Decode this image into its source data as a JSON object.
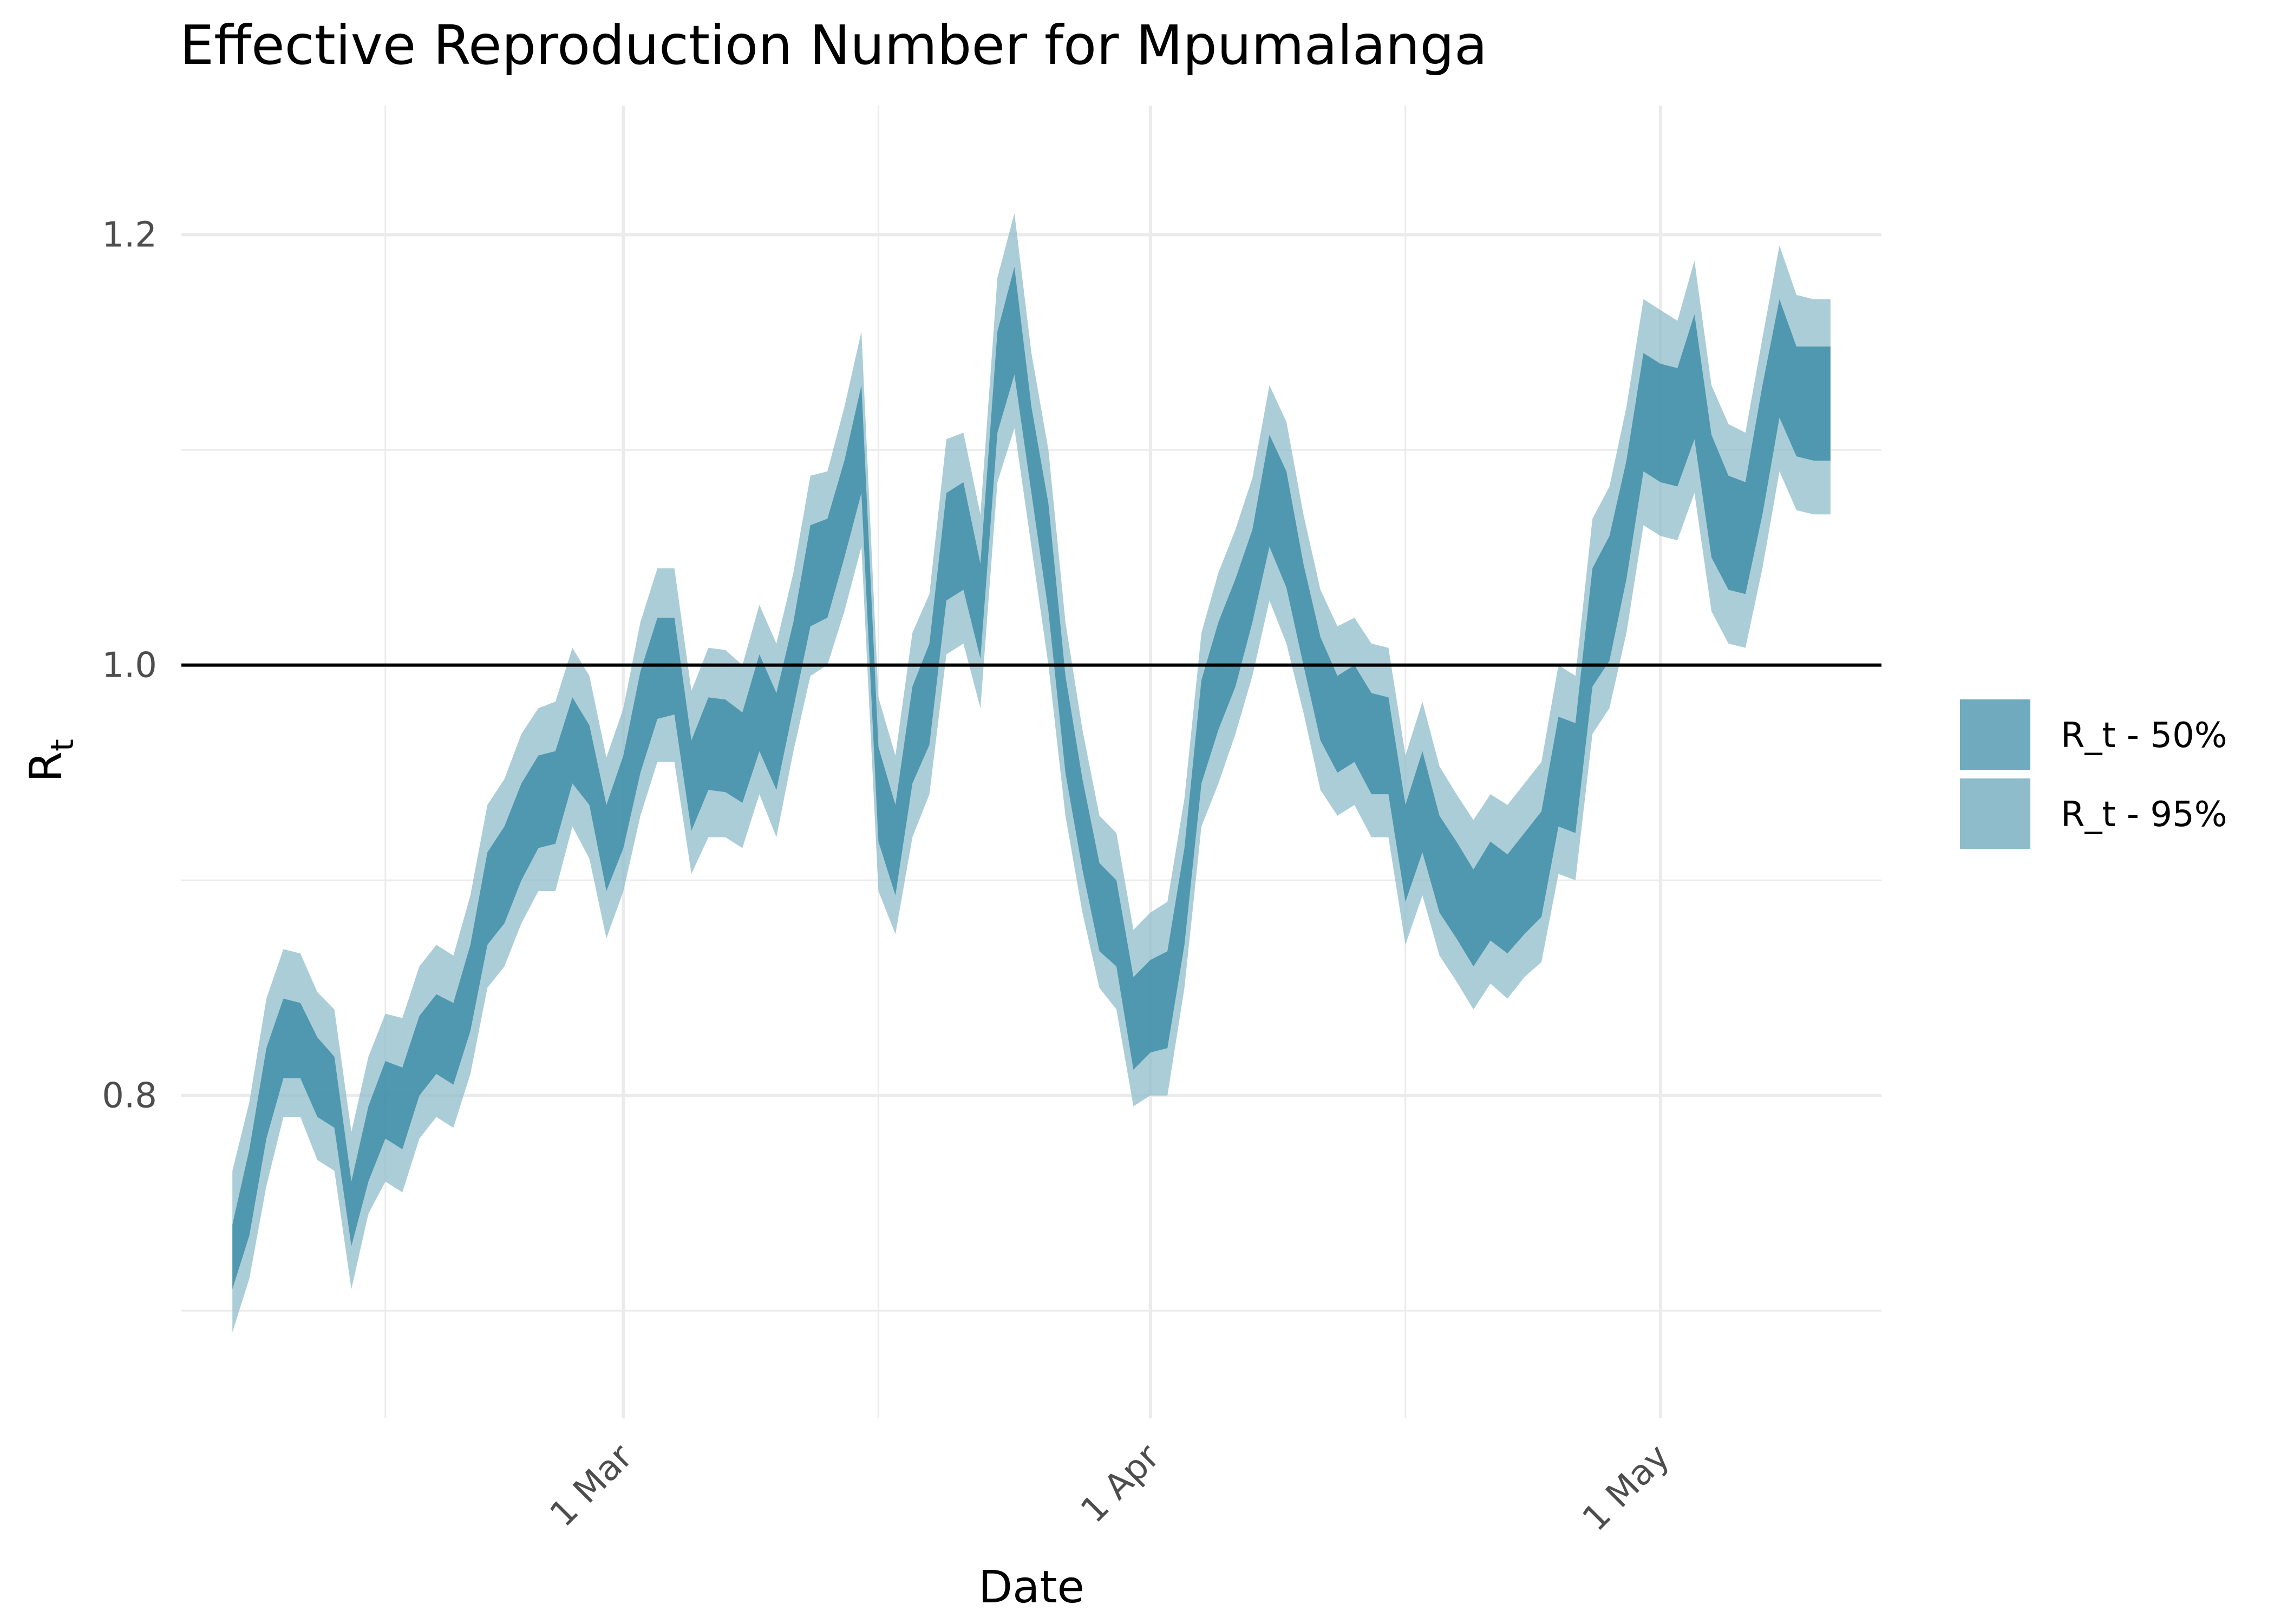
{
  "chart_data": {
    "type": "area",
    "title": "Effective Reproduction Number for Mpumalanga",
    "xlabel": "Date",
    "ylabel": {
      "main": "R",
      "subscript": "t"
    },
    "x_ticks": [
      "1 Mar",
      "1 Apr",
      "1 May"
    ],
    "y_ticks": [
      "0.8",
      "1.0",
      "1.2"
    ],
    "ylim": [
      0.65,
      1.26
    ],
    "xlim": [
      "2021-02-03",
      "2021-05-14"
    ],
    "grid": true,
    "reference_line": 1.0,
    "legend_position": "right",
    "colors": {
      "band50": "#3f8ea8",
      "band95": "#8fbcca",
      "refline": "#000000",
      "grid": "#ebebeb"
    },
    "x": [
      "2021-02-06",
      "2021-02-07",
      "2021-02-08",
      "2021-02-09",
      "2021-02-10",
      "2021-02-11",
      "2021-02-12",
      "2021-02-13",
      "2021-02-14",
      "2021-02-15",
      "2021-02-16",
      "2021-02-17",
      "2021-02-18",
      "2021-02-19",
      "2021-02-20",
      "2021-02-21",
      "2021-02-22",
      "2021-02-23",
      "2021-02-24",
      "2021-02-25",
      "2021-02-26",
      "2021-02-27",
      "2021-02-28",
      "2021-03-01",
      "2021-03-02",
      "2021-03-03",
      "2021-03-04",
      "2021-03-05",
      "2021-03-06",
      "2021-03-07",
      "2021-03-08",
      "2021-03-09",
      "2021-03-10",
      "2021-03-11",
      "2021-03-12",
      "2021-03-13",
      "2021-03-14",
      "2021-03-15",
      "2021-03-16",
      "2021-03-17",
      "2021-03-18",
      "2021-03-19",
      "2021-03-20",
      "2021-03-21",
      "2021-03-22",
      "2021-03-23",
      "2021-03-24",
      "2021-03-25",
      "2021-03-26",
      "2021-03-27",
      "2021-03-28",
      "2021-03-29",
      "2021-03-30",
      "2021-03-31",
      "2021-04-01",
      "2021-04-02",
      "2021-04-03",
      "2021-04-04",
      "2021-04-05",
      "2021-04-06",
      "2021-04-07",
      "2021-04-08",
      "2021-04-09",
      "2021-04-10",
      "2021-04-11",
      "2021-04-12",
      "2021-04-13",
      "2021-04-14",
      "2021-04-15",
      "2021-04-16",
      "2021-04-17",
      "2021-04-18",
      "2021-04-19",
      "2021-04-20",
      "2021-04-21",
      "2021-04-22",
      "2021-04-23",
      "2021-04-24",
      "2021-04-25",
      "2021-04-26",
      "2021-04-27",
      "2021-04-28",
      "2021-04-29",
      "2021-04-30",
      "2021-05-01",
      "2021-05-02",
      "2021-05-03",
      "2021-05-04",
      "2021-05-05",
      "2021-05-06",
      "2021-05-07",
      "2021-05-08",
      "2021-05-09",
      "2021-05-10",
      "2021-05-11"
    ],
    "series": [
      {
        "name": "R_t - 50%",
        "lower": [
          0.71,
          0.735,
          0.78,
          0.808,
          0.808,
          0.79,
          0.785,
          0.73,
          0.76,
          0.78,
          0.775,
          0.8,
          0.81,
          0.805,
          0.83,
          0.87,
          0.88,
          0.9,
          0.915,
          0.917,
          0.945,
          0.935,
          0.895,
          0.915,
          0.95,
          0.975,
          0.977,
          0.923,
          0.942,
          0.941,
          0.936,
          0.96,
          0.942,
          0.98,
          1.018,
          1.022,
          1.05,
          1.08,
          0.918,
          0.893,
          0.945,
          0.963,
          1.03,
          1.035,
          1.003,
          1.108,
          1.135,
          1.08,
          1.025,
          0.95,
          0.905,
          0.867,
          0.86,
          0.812,
          0.82,
          0.822,
          0.87,
          0.945,
          0.97,
          0.99,
          1.02,
          1.055,
          1.036,
          1.0,
          0.965,
          0.95,
          0.955,
          0.94,
          0.94,
          0.89,
          0.913,
          0.885,
          0.873,
          0.86,
          0.872,
          0.866,
          0.875,
          0.883,
          0.925,
          0.922,
          0.99,
          1.002,
          1.04,
          1.09,
          1.085,
          1.083,
          1.105,
          1.05,
          1.035,
          1.033,
          1.07,
          1.115,
          1.097,
          1.095,
          1.095
        ],
        "upper": [
          0.74,
          0.775,
          0.822,
          0.845,
          0.843,
          0.827,
          0.818,
          0.76,
          0.795,
          0.816,
          0.813,
          0.837,
          0.847,
          0.843,
          0.87,
          0.913,
          0.925,
          0.945,
          0.958,
          0.96,
          0.985,
          0.972,
          0.935,
          0.958,
          0.997,
          1.022,
          1.022,
          0.965,
          0.985,
          0.984,
          0.978,
          1.005,
          0.987,
          1.02,
          1.065,
          1.068,
          1.095,
          1.13,
          0.962,
          0.935,
          0.99,
          1.01,
          1.08,
          1.085,
          1.047,
          1.155,
          1.185,
          1.12,
          1.075,
          0.995,
          0.947,
          0.908,
          0.9,
          0.855,
          0.863,
          0.867,
          0.915,
          0.993,
          1.02,
          1.04,
          1.063,
          1.107,
          1.09,
          1.047,
          1.013,
          0.995,
          1.0,
          0.987,
          0.985,
          0.935,
          0.96,
          0.93,
          0.918,
          0.905,
          0.918,
          0.912,
          0.922,
          0.932,
          0.976,
          0.973,
          1.045,
          1.06,
          1.095,
          1.145,
          1.14,
          1.138,
          1.163,
          1.107,
          1.088,
          1.085,
          1.13,
          1.17,
          1.148,
          1.148,
          1.148
        ]
      },
      {
        "name": "R_t - 95%",
        "lower": [
          0.69,
          0.715,
          0.758,
          0.79,
          0.79,
          0.77,
          0.765,
          0.71,
          0.745,
          0.76,
          0.755,
          0.78,
          0.79,
          0.785,
          0.81,
          0.85,
          0.86,
          0.88,
          0.895,
          0.895,
          0.925,
          0.91,
          0.873,
          0.895,
          0.93,
          0.955,
          0.955,
          0.903,
          0.92,
          0.92,
          0.915,
          0.94,
          0.92,
          0.96,
          0.995,
          1.0,
          1.025,
          1.055,
          0.895,
          0.875,
          0.92,
          0.94,
          1.005,
          1.01,
          0.98,
          1.085,
          1.11,
          1.055,
          1.0,
          0.93,
          0.885,
          0.85,
          0.84,
          0.795,
          0.8,
          0.8,
          0.85,
          0.925,
          0.945,
          0.968,
          0.995,
          1.03,
          1.01,
          0.978,
          0.942,
          0.93,
          0.935,
          0.92,
          0.92,
          0.87,
          0.893,
          0.865,
          0.853,
          0.84,
          0.852,
          0.845,
          0.855,
          0.862,
          0.903,
          0.9,
          0.968,
          0.98,
          1.015,
          1.065,
          1.06,
          1.058,
          1.08,
          1.025,
          1.01,
          1.008,
          1.045,
          1.09,
          1.072,
          1.07,
          1.07
        ],
        "upper": [
          0.765,
          0.797,
          0.845,
          0.868,
          0.866,
          0.848,
          0.84,
          0.783,
          0.818,
          0.838,
          0.836,
          0.86,
          0.87,
          0.865,
          0.893,
          0.935,
          0.947,
          0.968,
          0.98,
          0.983,
          1.008,
          0.995,
          0.957,
          0.98,
          1.02,
          1.045,
          1.045,
          0.988,
          1.008,
          1.007,
          1.0,
          1.028,
          1.01,
          1.043,
          1.088,
          1.09,
          1.12,
          1.155,
          0.985,
          0.958,
          1.015,
          1.033,
          1.105,
          1.108,
          1.07,
          1.18,
          1.21,
          1.145,
          1.1,
          1.02,
          0.97,
          0.93,
          0.922,
          0.877,
          0.885,
          0.89,
          0.938,
          1.015,
          1.043,
          1.063,
          1.087,
          1.13,
          1.113,
          1.07,
          1.035,
          1.018,
          1.022,
          1.01,
          1.008,
          0.958,
          0.983,
          0.953,
          0.94,
          0.928,
          0.94,
          0.935,
          0.945,
          0.955,
          1.0,
          0.995,
          1.068,
          1.083,
          1.12,
          1.17,
          1.165,
          1.16,
          1.188,
          1.13,
          1.112,
          1.108,
          1.152,
          1.195,
          1.172,
          1.17,
          1.17
        ]
      }
    ]
  }
}
